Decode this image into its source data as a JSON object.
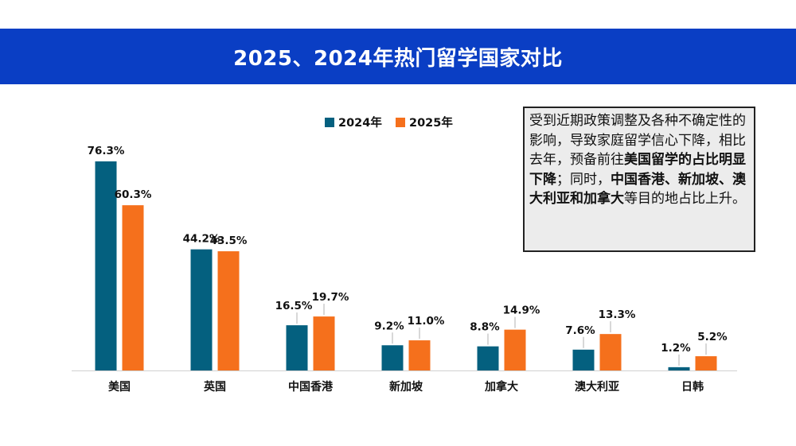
{
  "header": {
    "title": "2025、2024年热门留学国家对比",
    "background_color": "#0a3ec4"
  },
  "note": {
    "segments": [
      {
        "text": "受到近期政策调整及各种不确定性的影响，导致家庭留学信心下降，相比去年，预备前往",
        "bold": false
      },
      {
        "text": "美国留学的占比明显下降",
        "bold": true
      },
      {
        "text": "；同时，",
        "bold": false
      },
      {
        "text": "中国香港、新加坡、澳大利亚和加拿大",
        "bold": true
      },
      {
        "text": "等目的地占比上升。",
        "bold": false
      }
    ]
  },
  "chart_data": {
    "type": "bar",
    "categories": [
      "美国",
      "英国",
      "中国香港",
      "新加坡",
      "加拿大",
      "澳大利亚",
      "日韩"
    ],
    "series": [
      {
        "name": "2024年",
        "color": "#04607f",
        "values": [
          76.3,
          44.2,
          16.5,
          9.2,
          8.8,
          7.6,
          1.2
        ],
        "labels": [
          "76.3%",
          "44.2%",
          "16.5%",
          "9.2%",
          "8.8%",
          "7.6%",
          "1.2%"
        ]
      },
      {
        "name": "2025年",
        "color": "#f5701c",
        "values": [
          60.3,
          43.5,
          19.7,
          11.0,
          14.9,
          13.3,
          5.2
        ],
        "labels": [
          "60.3%",
          "43.5%",
          "19.7%",
          "11.0%",
          "14.9%",
          "13.3%",
          "5.2%"
        ]
      }
    ],
    "title": "",
    "xlabel": "",
    "ylabel": "",
    "ylim": [
      0,
      80
    ],
    "grid": false,
    "legend_position": "top-center"
  }
}
